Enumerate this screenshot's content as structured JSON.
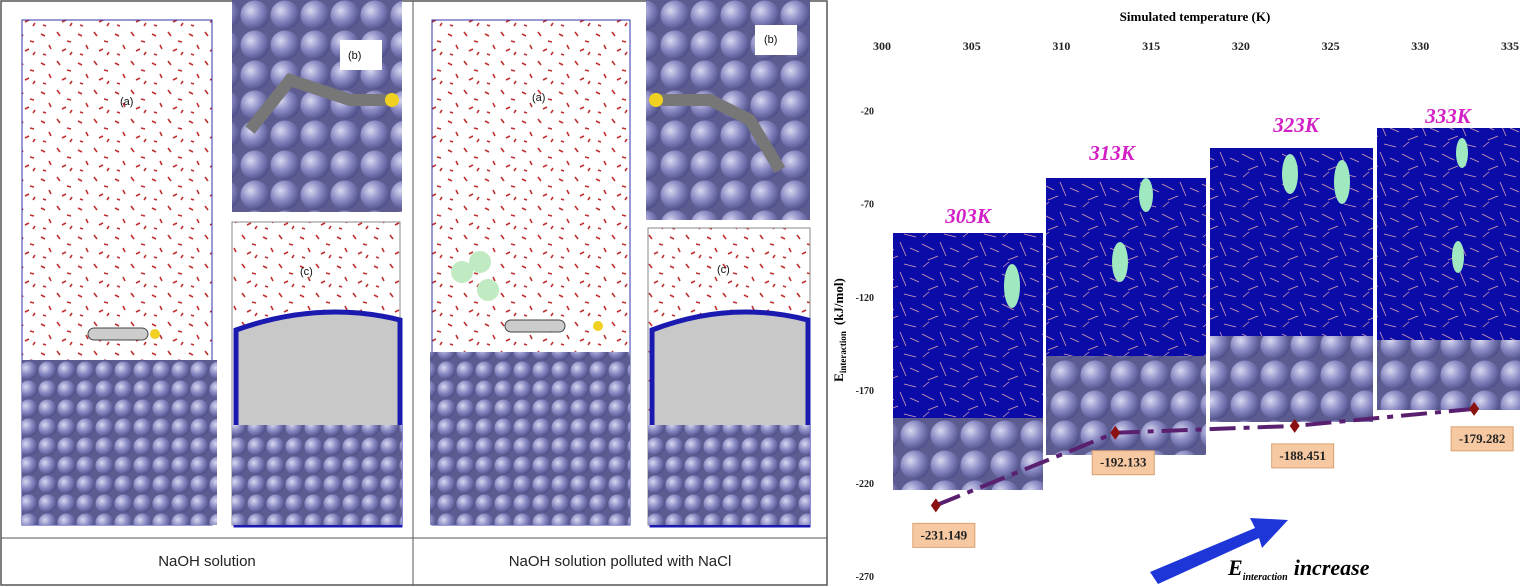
{
  "panels": [
    {
      "labels": [
        "(a)",
        "(b)",
        "(c)"
      ],
      "caption": "NaOH solution"
    },
    {
      "labels": [
        "(a)",
        "(b)",
        "(c)"
      ],
      "caption": "NaOH solution polluted with NaCl"
    }
  ],
  "chart_data": {
    "type": "line",
    "x_label": "Simulated temperature (K)",
    "y_label": {
      "symbol": "E",
      "subscript": "interaction",
      "unit": "(kJ/mol)"
    },
    "x": [
      303,
      313,
      323,
      333
    ],
    "snapshot_labels": [
      "303K",
      "313K",
      "323K",
      "333K"
    ],
    "series": [
      {
        "values": [
          -231.149,
          -192.133,
          -188.451,
          -179.282
        ],
        "color": "#5a2070",
        "marker_color": "#8b1010"
      }
    ],
    "xlim": [
      300,
      335
    ],
    "xticks": [
      300,
      305,
      310,
      315,
      320,
      325,
      330,
      335
    ],
    "ylim": [
      -275,
      -8
    ],
    "yticks": [
      -20,
      -70,
      -120,
      -170,
      -220,
      -270
    ],
    "annotation": {
      "symbol": "E",
      "subscript": "interaction",
      "text": "increase"
    }
  }
}
